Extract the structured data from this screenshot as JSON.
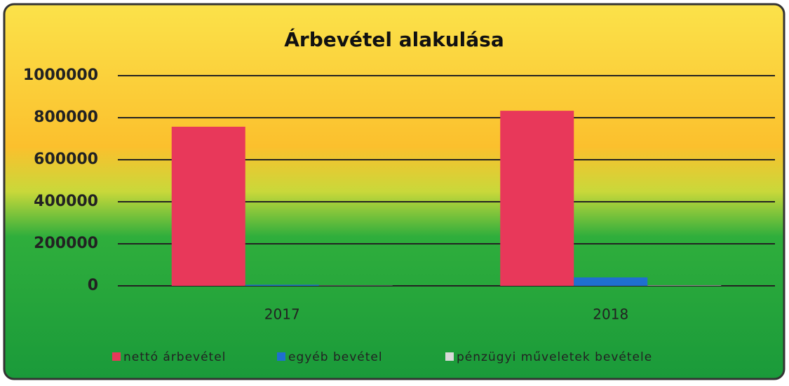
{
  "chart_data": {
    "type": "bar",
    "title": "Árbevétel alakulása",
    "categories": [
      "2017",
      "2018"
    ],
    "series": [
      {
        "name": "nettó árbevétel",
        "color": "#e8385a",
        "values": [
          757000,
          833000
        ]
      },
      {
        "name": "egyéb bevétel",
        "color": "#1f6fcf",
        "values": [
          5000,
          40000
        ]
      },
      {
        "name": "pénzügyi műveletek bevétele",
        "color": "#d9d9d9",
        "values": [
          1000,
          2000
        ]
      }
    ],
    "ylim": [
      0,
      1000000
    ],
    "yticks": [
      0,
      200000,
      400000,
      600000,
      800000,
      1000000
    ],
    "grid": true,
    "legend": "bottom"
  }
}
